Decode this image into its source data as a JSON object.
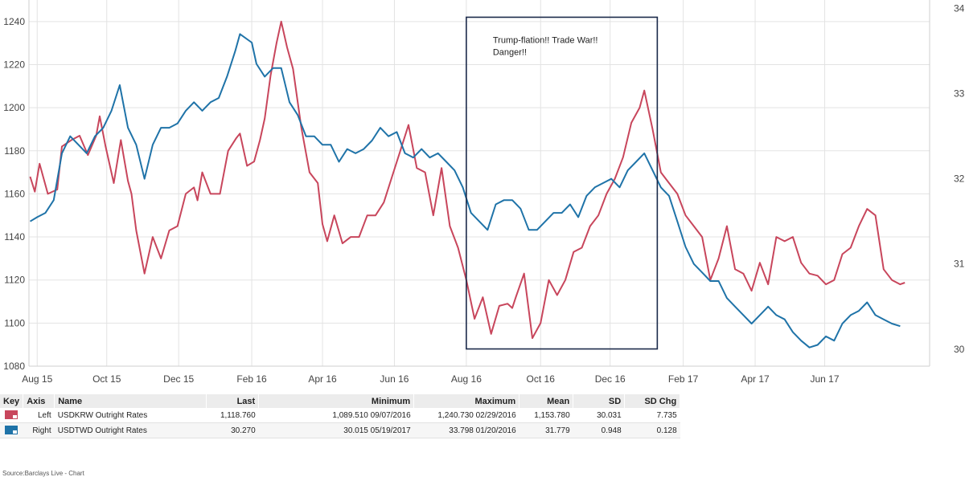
{
  "chart_data": {
    "type": "line",
    "x_tick_labels": [
      "Aug 15",
      "Oct 15",
      "Dec 15",
      "Feb 16",
      "Apr 16",
      "Jun 16",
      "Aug 16",
      "Oct 16",
      "Dec 16",
      "Feb 17",
      "Apr 17",
      "Jun 17"
    ],
    "x_tick_dates": [
      "2015-08-03",
      "2015-10-01",
      "2015-12-01",
      "2016-02-01",
      "2016-04-01",
      "2016-06-01",
      "2016-08-01",
      "2016-10-03",
      "2016-12-01",
      "2017-02-01",
      "2017-04-03",
      "2017-06-01"
    ],
    "x_range": [
      "2015-07-27",
      "2017-08-29"
    ],
    "y_left": {
      "min": 1080,
      "max": 1250,
      "ticks": [
        1080,
        1100,
        1120,
        1140,
        1160,
        1180,
        1200,
        1220,
        1240
      ]
    },
    "y_right": {
      "min": 29.8,
      "max": 34.1,
      "ticks": [
        30,
        31,
        32,
        33,
        34
      ]
    },
    "grid": true,
    "series": [
      {
        "name": "USDKRW Outright Rates",
        "axis": "left",
        "color": "#c8465c",
        "points": [
          [
            "2015-07-28",
            1168
          ],
          [
            "2015-08-01",
            1161
          ],
          [
            "2015-08-05",
            1174
          ],
          [
            "2015-08-12",
            1160
          ],
          [
            "2015-08-20",
            1162
          ],
          [
            "2015-08-24",
            1182
          ],
          [
            "2015-09-01",
            1185
          ],
          [
            "2015-09-08",
            1187
          ],
          [
            "2015-09-15",
            1178
          ],
          [
            "2015-09-22",
            1187
          ],
          [
            "2015-09-25",
            1196
          ],
          [
            "2015-09-30",
            1182
          ],
          [
            "2015-10-07",
            1165
          ],
          [
            "2015-10-13",
            1185
          ],
          [
            "2015-10-19",
            1166
          ],
          [
            "2015-10-22",
            1160
          ],
          [
            "2015-10-26",
            1143
          ],
          [
            "2015-11-02",
            1123
          ],
          [
            "2015-11-09",
            1140
          ],
          [
            "2015-11-16",
            1130
          ],
          [
            "2015-11-23",
            1143
          ],
          [
            "2015-11-30",
            1145
          ],
          [
            "2015-12-07",
            1160
          ],
          [
            "2015-12-14",
            1163
          ],
          [
            "2015-12-17",
            1157
          ],
          [
            "2015-12-21",
            1170
          ],
          [
            "2015-12-28",
            1160
          ],
          [
            "2016-01-05",
            1160
          ],
          [
            "2016-01-12",
            1180
          ],
          [
            "2016-01-19",
            1186
          ],
          [
            "2016-01-22",
            1188
          ],
          [
            "2016-01-28",
            1173
          ],
          [
            "2016-02-03",
            1175
          ],
          [
            "2016-02-08",
            1185
          ],
          [
            "2016-02-12",
            1195
          ],
          [
            "2016-02-17",
            1215
          ],
          [
            "2016-02-22",
            1230
          ],
          [
            "2016-02-26",
            1240
          ],
          [
            "2016-03-02",
            1228
          ],
          [
            "2016-03-07",
            1218
          ],
          [
            "2016-03-14",
            1191
          ],
          [
            "2016-03-21",
            1170
          ],
          [
            "2016-03-28",
            1165
          ],
          [
            "2016-04-01",
            1146
          ],
          [
            "2016-04-05",
            1138
          ],
          [
            "2016-04-11",
            1150
          ],
          [
            "2016-04-18",
            1137
          ],
          [
            "2016-04-25",
            1140
          ],
          [
            "2016-05-02",
            1140
          ],
          [
            "2016-05-09",
            1150
          ],
          [
            "2016-05-16",
            1150
          ],
          [
            "2016-05-23",
            1156
          ],
          [
            "2016-05-30",
            1168
          ],
          [
            "2016-06-06",
            1180
          ],
          [
            "2016-06-13",
            1192
          ],
          [
            "2016-06-20",
            1172
          ],
          [
            "2016-06-27",
            1170
          ],
          [
            "2016-07-04",
            1150
          ],
          [
            "2016-07-11",
            1172
          ],
          [
            "2016-07-18",
            1145
          ],
          [
            "2016-07-25",
            1135
          ],
          [
            "2016-08-01",
            1120
          ],
          [
            "2016-08-08",
            1102
          ],
          [
            "2016-08-15",
            1112
          ],
          [
            "2016-08-22",
            1095
          ],
          [
            "2016-08-29",
            1108
          ],
          [
            "2016-09-05",
            1109
          ],
          [
            "2016-09-09",
            1107
          ],
          [
            "2016-09-12",
            1112
          ],
          [
            "2016-09-19",
            1123
          ],
          [
            "2016-09-26",
            1093
          ],
          [
            "2016-10-03",
            1100
          ],
          [
            "2016-10-10",
            1120
          ],
          [
            "2016-10-17",
            1113
          ],
          [
            "2016-10-24",
            1120
          ],
          [
            "2016-10-31",
            1133
          ],
          [
            "2016-11-07",
            1135
          ],
          [
            "2016-11-14",
            1145
          ],
          [
            "2016-11-21",
            1150
          ],
          [
            "2016-11-28",
            1160
          ],
          [
            "2016-12-05",
            1167
          ],
          [
            "2016-12-12",
            1177
          ],
          [
            "2016-12-19",
            1193
          ],
          [
            "2016-12-26",
            1200
          ],
          [
            "2016-12-30",
            1208
          ],
          [
            "2017-01-06",
            1190
          ],
          [
            "2017-01-13",
            1170
          ],
          [
            "2017-01-20",
            1165
          ],
          [
            "2017-01-27",
            1160
          ],
          [
            "2017-02-03",
            1150
          ],
          [
            "2017-02-10",
            1145
          ],
          [
            "2017-02-17",
            1140
          ],
          [
            "2017-02-24",
            1120
          ],
          [
            "2017-03-03",
            1130
          ],
          [
            "2017-03-10",
            1145
          ],
          [
            "2017-03-17",
            1125
          ],
          [
            "2017-03-24",
            1123
          ],
          [
            "2017-03-31",
            1115
          ],
          [
            "2017-04-07",
            1128
          ],
          [
            "2017-04-14",
            1118
          ],
          [
            "2017-04-21",
            1140
          ],
          [
            "2017-04-28",
            1138
          ],
          [
            "2017-05-05",
            1140
          ],
          [
            "2017-05-12",
            1128
          ],
          [
            "2017-05-19",
            1123
          ],
          [
            "2017-05-26",
            1122
          ],
          [
            "2017-06-02",
            1118
          ],
          [
            "2017-06-09",
            1120
          ],
          [
            "2017-06-16",
            1132
          ],
          [
            "2017-06-23",
            1135
          ],
          [
            "2017-06-30",
            1145
          ],
          [
            "2017-07-07",
            1153
          ],
          [
            "2017-07-14",
            1150
          ],
          [
            "2017-07-21",
            1125
          ],
          [
            "2017-07-28",
            1120
          ],
          [
            "2017-08-04",
            1118
          ],
          [
            "2017-08-08",
            1118.76
          ]
        ]
      },
      {
        "name": "USDTWD Outright Rates",
        "axis": "right",
        "color": "#1f73a8",
        "points": [
          [
            "2015-07-28",
            31.5
          ],
          [
            "2015-08-03",
            31.55
          ],
          [
            "2015-08-10",
            31.6
          ],
          [
            "2015-08-17",
            31.75
          ],
          [
            "2015-08-24",
            32.3
          ],
          [
            "2015-08-31",
            32.5
          ],
          [
            "2015-09-07",
            32.4
          ],
          [
            "2015-09-14",
            32.3
          ],
          [
            "2015-09-21",
            32.5
          ],
          [
            "2015-09-28",
            32.6
          ],
          [
            "2015-10-05",
            32.8
          ],
          [
            "2015-10-12",
            33.1
          ],
          [
            "2015-10-19",
            32.6
          ],
          [
            "2015-10-26",
            32.4
          ],
          [
            "2015-11-02",
            32.0
          ],
          [
            "2015-11-09",
            32.4
          ],
          [
            "2015-11-16",
            32.6
          ],
          [
            "2015-11-23",
            32.6
          ],
          [
            "2015-11-30",
            32.65
          ],
          [
            "2015-12-07",
            32.8
          ],
          [
            "2015-12-14",
            32.9
          ],
          [
            "2015-12-21",
            32.8
          ],
          [
            "2015-12-28",
            32.9
          ],
          [
            "2016-01-04",
            32.95
          ],
          [
            "2016-01-11",
            33.2
          ],
          [
            "2016-01-18",
            33.5
          ],
          [
            "2016-01-22",
            33.7
          ],
          [
            "2016-02-01",
            33.6
          ],
          [
            "2016-02-05",
            33.35
          ],
          [
            "2016-02-12",
            33.2
          ],
          [
            "2016-02-19",
            33.3
          ],
          [
            "2016-02-26",
            33.3
          ],
          [
            "2016-03-04",
            32.9
          ],
          [
            "2016-03-11",
            32.75
          ],
          [
            "2016-03-18",
            32.5
          ],
          [
            "2016-03-25",
            32.5
          ],
          [
            "2016-04-01",
            32.4
          ],
          [
            "2016-04-08",
            32.4
          ],
          [
            "2016-04-15",
            32.2
          ],
          [
            "2016-04-22",
            32.35
          ],
          [
            "2016-04-29",
            32.3
          ],
          [
            "2016-05-06",
            32.35
          ],
          [
            "2016-05-13",
            32.45
          ],
          [
            "2016-05-20",
            32.6
          ],
          [
            "2016-05-27",
            32.5
          ],
          [
            "2016-06-03",
            32.55
          ],
          [
            "2016-06-10",
            32.3
          ],
          [
            "2016-06-17",
            32.25
          ],
          [
            "2016-06-24",
            32.35
          ],
          [
            "2016-07-01",
            32.25
          ],
          [
            "2016-07-08",
            32.3
          ],
          [
            "2016-07-15",
            32.2
          ],
          [
            "2016-07-22",
            32.1
          ],
          [
            "2016-07-29",
            31.9
          ],
          [
            "2016-08-05",
            31.6
          ],
          [
            "2016-08-12",
            31.5
          ],
          [
            "2016-08-19",
            31.4
          ],
          [
            "2016-08-26",
            31.7
          ],
          [
            "2016-09-02",
            31.75
          ],
          [
            "2016-09-09",
            31.75
          ],
          [
            "2016-09-16",
            31.65
          ],
          [
            "2016-09-23",
            31.4
          ],
          [
            "2016-09-30",
            31.4
          ],
          [
            "2016-10-07",
            31.5
          ],
          [
            "2016-10-14",
            31.6
          ],
          [
            "2016-10-21",
            31.6
          ],
          [
            "2016-10-28",
            31.7
          ],
          [
            "2016-11-04",
            31.55
          ],
          [
            "2016-11-11",
            31.8
          ],
          [
            "2016-11-18",
            31.9
          ],
          [
            "2016-11-25",
            31.95
          ],
          [
            "2016-12-02",
            32.0
          ],
          [
            "2016-12-09",
            31.9
          ],
          [
            "2016-12-16",
            32.1
          ],
          [
            "2016-12-23",
            32.2
          ],
          [
            "2016-12-30",
            32.3
          ],
          [
            "2017-01-06",
            32.1
          ],
          [
            "2017-01-13",
            31.9
          ],
          [
            "2017-01-20",
            31.8
          ],
          [
            "2017-01-27",
            31.5
          ],
          [
            "2017-02-03",
            31.2
          ],
          [
            "2017-02-10",
            31.0
          ],
          [
            "2017-02-17",
            30.9
          ],
          [
            "2017-02-24",
            30.8
          ],
          [
            "2017-03-03",
            30.8
          ],
          [
            "2017-03-10",
            30.6
          ],
          [
            "2017-03-17",
            30.5
          ],
          [
            "2017-03-24",
            30.4
          ],
          [
            "2017-03-31",
            30.3
          ],
          [
            "2017-04-07",
            30.4
          ],
          [
            "2017-04-14",
            30.5
          ],
          [
            "2017-04-21",
            30.4
          ],
          [
            "2017-04-28",
            30.35
          ],
          [
            "2017-05-05",
            30.2
          ],
          [
            "2017-05-12",
            30.1
          ],
          [
            "2017-05-19",
            30.02
          ],
          [
            "2017-05-26",
            30.05
          ],
          [
            "2017-06-02",
            30.15
          ],
          [
            "2017-06-09",
            30.1
          ],
          [
            "2017-06-16",
            30.3
          ],
          [
            "2017-06-23",
            30.4
          ],
          [
            "2017-06-30",
            30.45
          ],
          [
            "2017-07-07",
            30.55
          ],
          [
            "2017-07-14",
            30.4
          ],
          [
            "2017-07-21",
            30.35
          ],
          [
            "2017-07-28",
            30.3
          ],
          [
            "2017-08-04",
            30.27
          ]
        ]
      }
    ],
    "annotation": {
      "text_lines": [
        "Trump-flation!! Trade War!!",
        "Danger!!"
      ],
      "box_x": [
        "2016-08-01",
        "2017-01-10"
      ],
      "box_y_left": [
        1088,
        1242
      ]
    }
  },
  "table": {
    "headers": [
      "Key",
      "Axis",
      "Name",
      "Last",
      "Minimum",
      "Maximum",
      "Mean",
      "SD",
      "SD Chg"
    ],
    "rows": [
      {
        "color": "#c8465c",
        "axis": "Left",
        "name": "USDKRW Outright Rates",
        "last": "1,118.760",
        "minimum": "1,089.510 09/07/2016",
        "maximum": "1,240.730 02/29/2016",
        "mean": "1,153.780",
        "sd": "30.031",
        "sd_chg": "7.735"
      },
      {
        "color": "#1f73a8",
        "axis": "Right",
        "name": "USDTWD Outright Rates",
        "last": "30.270",
        "minimum": "30.015 05/19/2017",
        "maximum": "33.798 01/20/2016",
        "mean": "31.779",
        "sd": "0.948",
        "sd_chg": "0.128"
      }
    ]
  },
  "source": "Source:Barclays Live - Chart"
}
